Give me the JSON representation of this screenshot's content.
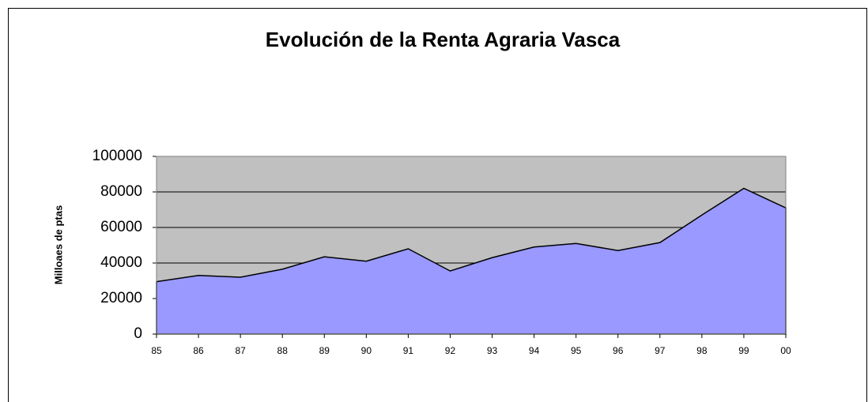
{
  "chart_data": {
    "type": "area",
    "title": "Evolución de la Renta Agraria Vasca",
    "y_label": "Milloaes de ptas",
    "categories": [
      "85",
      "86",
      "87",
      "88",
      "89",
      "90",
      "91",
      "92",
      "93",
      "94",
      "95",
      "96",
      "97",
      "98",
      "99",
      "00"
    ],
    "values": [
      29500,
      33000,
      32000,
      36500,
      43500,
      41000,
      48000,
      35500,
      43000,
      49000,
      51000,
      47000,
      51500,
      67000,
      82000,
      71000
    ],
    "color": "#9999ff",
    "plot_background": "#c0c0c0",
    "ylim": [
      0,
      100000
    ],
    "yticks": [
      0,
      20000,
      40000,
      60000,
      80000,
      100000
    ],
    "grid": true
  }
}
